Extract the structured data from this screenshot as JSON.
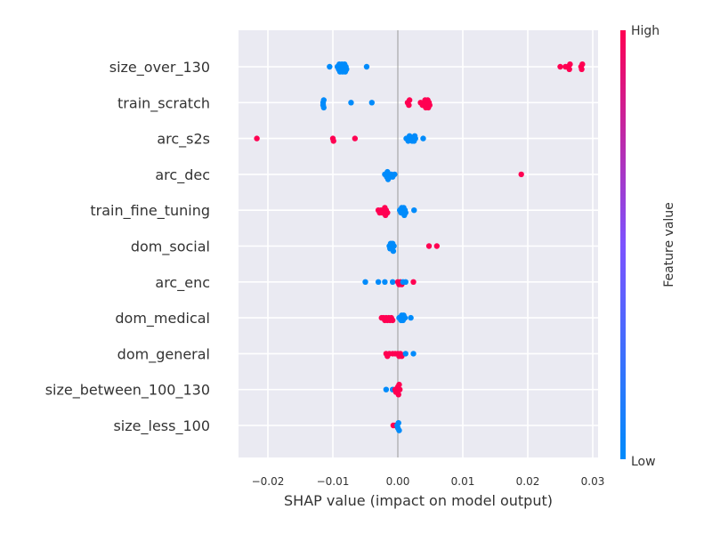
{
  "chart_data": {
    "type": "scatter",
    "subtype": "shap-beeswarm",
    "xlabel": "SHAP value (impact on model output)",
    "xlim": [
      -0.024,
      0.0305
    ],
    "xticks": [
      {
        "value": -0.02,
        "label": "−0.02"
      },
      {
        "value": -0.01,
        "label": "−0.01"
      },
      {
        "value": 0.0,
        "label": "0.00"
      },
      {
        "value": 0.01,
        "label": "0.01"
      },
      {
        "value": 0.02,
        "label": "0.02"
      },
      {
        "value": 0.03,
        "label": "0.03"
      }
    ],
    "grid": true,
    "background": "#eaeaf2",
    "colorbar": {
      "title": "Feature value",
      "high_label": "High",
      "low_label": "Low",
      "low_color": "#008bfb",
      "high_color": "#ff0052"
    },
    "features": [
      {
        "name": "size_over_130",
        "points": [
          {
            "x": -0.0105,
            "v": 0
          },
          {
            "x": -0.0093,
            "v": 0
          },
          {
            "x": -0.0092,
            "v": 0
          },
          {
            "x": -0.0091,
            "v": 0
          },
          {
            "x": -0.009,
            "v": 0
          },
          {
            "x": -0.0089,
            "v": 0
          },
          {
            "x": -0.0088,
            "v": 0
          },
          {
            "x": -0.0087,
            "v": 0
          },
          {
            "x": -0.0086,
            "v": 0
          },
          {
            "x": -0.0085,
            "v": 0
          },
          {
            "x": -0.0084,
            "v": 0
          },
          {
            "x": -0.0083,
            "v": 0
          },
          {
            "x": -0.0082,
            "v": 0
          },
          {
            "x": -0.0081,
            "v": 0
          },
          {
            "x": -0.008,
            "v": 0
          },
          {
            "x": -0.0079,
            "v": 0
          },
          {
            "x": -0.0048,
            "v": 0
          },
          {
            "x": 0.025,
            "v": 1
          },
          {
            "x": 0.0258,
            "v": 1
          },
          {
            "x": 0.0262,
            "v": 1
          },
          {
            "x": 0.0264,
            "v": 1
          },
          {
            "x": 0.0265,
            "v": 1
          },
          {
            "x": 0.0282,
            "v": 1
          },
          {
            "x": 0.0283,
            "v": 1
          },
          {
            "x": 0.0284,
            "v": 1
          }
        ]
      },
      {
        "name": "train_scratch",
        "points": [
          {
            "x": -0.0115,
            "v": 0
          },
          {
            "x": -0.0115,
            "v": 0
          },
          {
            "x": -0.0114,
            "v": 0
          },
          {
            "x": -0.0114,
            "v": 0
          },
          {
            "x": -0.0072,
            "v": 0
          },
          {
            "x": -0.004,
            "v": 0
          },
          {
            "x": 0.0015,
            "v": 1
          },
          {
            "x": 0.0017,
            "v": 1
          },
          {
            "x": 0.0018,
            "v": 1
          },
          {
            "x": 0.0035,
            "v": 1
          },
          {
            "x": 0.0038,
            "v": 1
          },
          {
            "x": 0.004,
            "v": 1
          },
          {
            "x": 0.0041,
            "v": 1
          },
          {
            "x": 0.0042,
            "v": 1
          },
          {
            "x": 0.0043,
            "v": 1
          },
          {
            "x": 0.0044,
            "v": 1
          },
          {
            "x": 0.0045,
            "v": 1
          },
          {
            "x": 0.0046,
            "v": 1
          },
          {
            "x": 0.0047,
            "v": 1
          },
          {
            "x": 0.0048,
            "v": 1
          },
          {
            "x": 0.0049,
            "v": 1
          }
        ]
      },
      {
        "name": "arc_s2s",
        "points": [
          {
            "x": -0.0217,
            "v": 1
          },
          {
            "x": -0.01,
            "v": 1
          },
          {
            "x": -0.0099,
            "v": 1
          },
          {
            "x": -0.0066,
            "v": 1
          },
          {
            "x": 0.0013,
            "v": 0
          },
          {
            "x": 0.0015,
            "v": 0
          },
          {
            "x": 0.0016,
            "v": 0
          },
          {
            "x": 0.0018,
            "v": 0
          },
          {
            "x": 0.002,
            "v": 0
          },
          {
            "x": 0.0022,
            "v": 0
          },
          {
            "x": 0.0024,
            "v": 0
          },
          {
            "x": 0.0025,
            "v": 0
          },
          {
            "x": 0.0026,
            "v": 0
          },
          {
            "x": 0.0027,
            "v": 0
          },
          {
            "x": 0.0039,
            "v": 0
          }
        ]
      },
      {
        "name": "arc_dec",
        "points": [
          {
            "x": -0.002,
            "v": 0
          },
          {
            "x": -0.0018,
            "v": 0
          },
          {
            "x": -0.0017,
            "v": 0
          },
          {
            "x": -0.0016,
            "v": 0
          },
          {
            "x": -0.0015,
            "v": 0
          },
          {
            "x": -0.0014,
            "v": 0
          },
          {
            "x": -0.0012,
            "v": 0
          },
          {
            "x": -0.001,
            "v": 0
          },
          {
            "x": -0.0008,
            "v": 0
          },
          {
            "x": -0.0005,
            "v": 0
          },
          {
            "x": 0.019,
            "v": 1
          }
        ]
      },
      {
        "name": "train_fine_tuning",
        "points": [
          {
            "x": -0.003,
            "v": 1
          },
          {
            "x": -0.0028,
            "v": 1
          },
          {
            "x": -0.0026,
            "v": 1
          },
          {
            "x": -0.0024,
            "v": 1
          },
          {
            "x": -0.0022,
            "v": 1
          },
          {
            "x": -0.0021,
            "v": 1
          },
          {
            "x": -0.002,
            "v": 1
          },
          {
            "x": -0.0019,
            "v": 1
          },
          {
            "x": -0.0018,
            "v": 1
          },
          {
            "x": -0.0016,
            "v": 1
          },
          {
            "x": 0.0003,
            "v": 0
          },
          {
            "x": 0.0005,
            "v": 0
          },
          {
            "x": 0.0006,
            "v": 0
          },
          {
            "x": 0.0007,
            "v": 0
          },
          {
            "x": 0.0008,
            "v": 0
          },
          {
            "x": 0.0009,
            "v": 0
          },
          {
            "x": 0.001,
            "v": 0
          },
          {
            "x": 0.0011,
            "v": 0
          },
          {
            "x": 0.0012,
            "v": 0
          },
          {
            "x": 0.0025,
            "v": 0
          }
        ]
      },
      {
        "name": "dom_social",
        "points": [
          {
            "x": -0.0013,
            "v": 0
          },
          {
            "x": -0.0012,
            "v": 0
          },
          {
            "x": -0.0011,
            "v": 0
          },
          {
            "x": -0.001,
            "v": 0
          },
          {
            "x": -0.0009,
            "v": 0
          },
          {
            "x": -0.0008,
            "v": 0
          },
          {
            "x": -0.0007,
            "v": 0
          },
          {
            "x": -0.0006,
            "v": 0
          },
          {
            "x": 0.0048,
            "v": 1
          },
          {
            "x": 0.006,
            "v": 1
          }
        ]
      },
      {
        "name": "arc_enc",
        "points": [
          {
            "x": -0.005,
            "v": 0
          },
          {
            "x": -0.003,
            "v": 0
          },
          {
            "x": -0.002,
            "v": 0
          },
          {
            "x": -0.0008,
            "v": 0
          },
          {
            "x": 0.0,
            "v": 1
          },
          {
            "x": 0.0002,
            "v": 1
          },
          {
            "x": 0.0004,
            "v": 1
          },
          {
            "x": 0.0006,
            "v": 1
          },
          {
            "x": 0.0008,
            "v": 0
          },
          {
            "x": 0.0012,
            "v": 0
          },
          {
            "x": 0.0024,
            "v": 1
          }
        ]
      },
      {
        "name": "dom_medical",
        "points": [
          {
            "x": -0.0025,
            "v": 1
          },
          {
            "x": -0.0022,
            "v": 1
          },
          {
            "x": -0.002,
            "v": 1
          },
          {
            "x": -0.0018,
            "v": 1
          },
          {
            "x": -0.0016,
            "v": 1
          },
          {
            "x": -0.0014,
            "v": 1
          },
          {
            "x": -0.0012,
            "v": 1
          },
          {
            "x": -0.001,
            "v": 1
          },
          {
            "x": -0.0008,
            "v": 1
          },
          {
            "x": 0.0002,
            "v": 0
          },
          {
            "x": 0.0004,
            "v": 0
          },
          {
            "x": 0.0005,
            "v": 0
          },
          {
            "x": 0.0006,
            "v": 0
          },
          {
            "x": 0.0007,
            "v": 0
          },
          {
            "x": 0.0008,
            "v": 0
          },
          {
            "x": 0.0009,
            "v": 0
          },
          {
            "x": 0.0011,
            "v": 0
          },
          {
            "x": 0.002,
            "v": 0
          }
        ]
      },
      {
        "name": "dom_general",
        "points": [
          {
            "x": -0.0018,
            "v": 1
          },
          {
            "x": -0.0016,
            "v": 1
          },
          {
            "x": -0.0013,
            "v": 1
          },
          {
            "x": -0.0008,
            "v": 1
          },
          {
            "x": -0.0004,
            "v": 1
          },
          {
            "x": 0.0,
            "v": 1
          },
          {
            "x": 0.0002,
            "v": 1
          },
          {
            "x": 0.0004,
            "v": 1
          },
          {
            "x": 0.0006,
            "v": 1
          },
          {
            "x": 0.0012,
            "v": 0
          },
          {
            "x": 0.0024,
            "v": 0
          }
        ]
      },
      {
        "name": "size_between_100_130",
        "points": [
          {
            "x": -0.0018,
            "v": 0
          },
          {
            "x": -0.0008,
            "v": 0
          },
          {
            "x": -0.0004,
            "v": 1
          },
          {
            "x": -0.0003,
            "v": 1
          },
          {
            "x": -0.0002,
            "v": 1
          },
          {
            "x": -0.0001,
            "v": 1
          },
          {
            "x": 0.0,
            "v": 1
          },
          {
            "x": 0.0001,
            "v": 1
          },
          {
            "x": 0.0002,
            "v": 1
          },
          {
            "x": 0.0003,
            "v": 1
          }
        ]
      },
      {
        "name": "size_less_100",
        "points": [
          {
            "x": -0.0007,
            "v": 1
          },
          {
            "x": -0.0004,
            "v": 1
          },
          {
            "x": -0.0001,
            "v": 0
          },
          {
            "x": 0.0,
            "v": 0
          },
          {
            "x": 0.0001,
            "v": 0
          },
          {
            "x": 0.0002,
            "v": 0
          }
        ]
      }
    ]
  }
}
